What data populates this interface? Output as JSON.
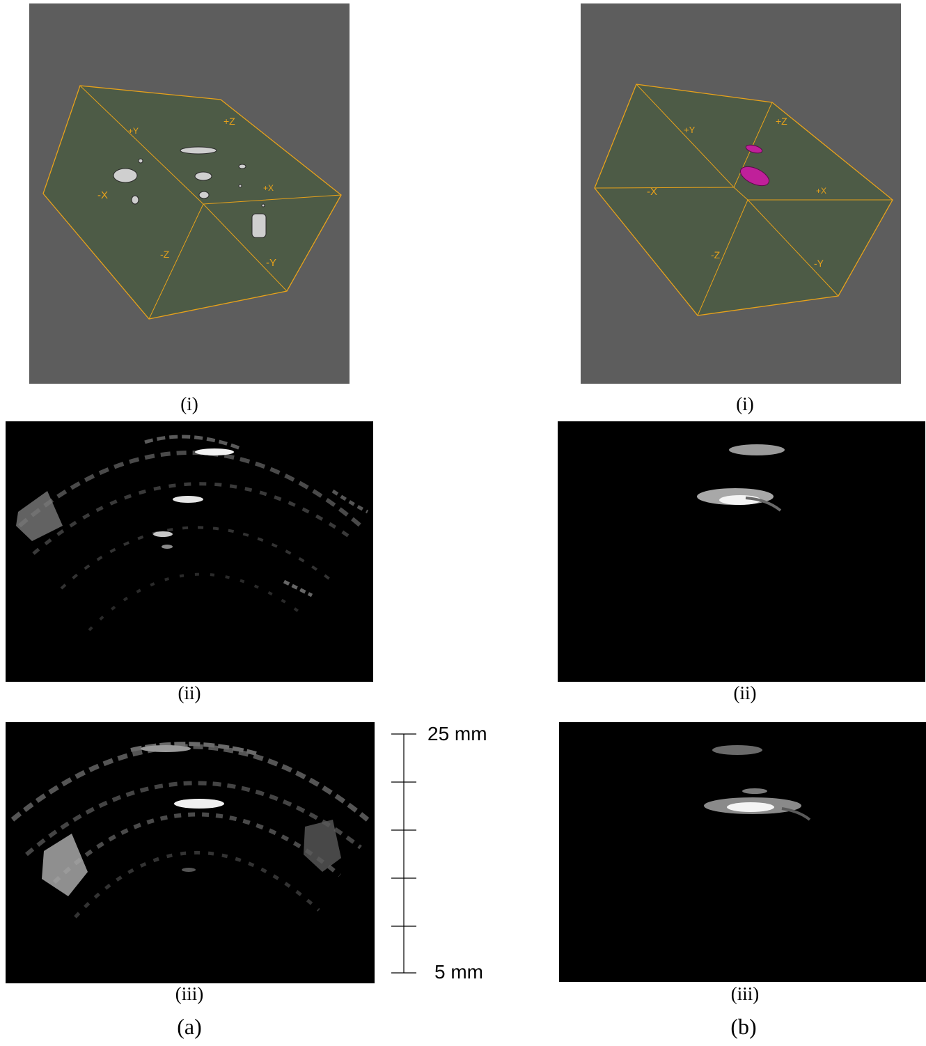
{
  "column_a": {
    "label": "(a)",
    "render": {
      "caption": "(i)",
      "axis_labels": {
        "plus_y": "+Y",
        "plus_z": "+Z",
        "minus_x": "-X",
        "plus_x": "+X",
        "minus_z": "-Z",
        "minus_y": "-Y"
      }
    },
    "slice_ii": {
      "caption": "(ii)"
    },
    "slice_iii": {
      "caption": "(iii)"
    }
  },
  "column_b": {
    "label": "(b)",
    "render": {
      "caption": "(i)",
      "axis_labels": {
        "plus_y": "+Y",
        "plus_z": "+Z",
        "minus_x": "-X",
        "plus_x": "+X",
        "minus_z": "-Z",
        "minus_y": "-Y"
      }
    },
    "slice_ii": {
      "caption": "(ii)"
    },
    "slice_iii": {
      "caption": "(iii)"
    }
  },
  "scale_bar": {
    "top_label": "25 mm",
    "bottom_label": "5 mm"
  },
  "colors": {
    "render_background": "#5d5d5d",
    "bounding_box": "#e8a21a",
    "volume_tint": "#4a5a42",
    "target_inclusions": "#c0209a",
    "ultrasound_background": "#000000"
  }
}
